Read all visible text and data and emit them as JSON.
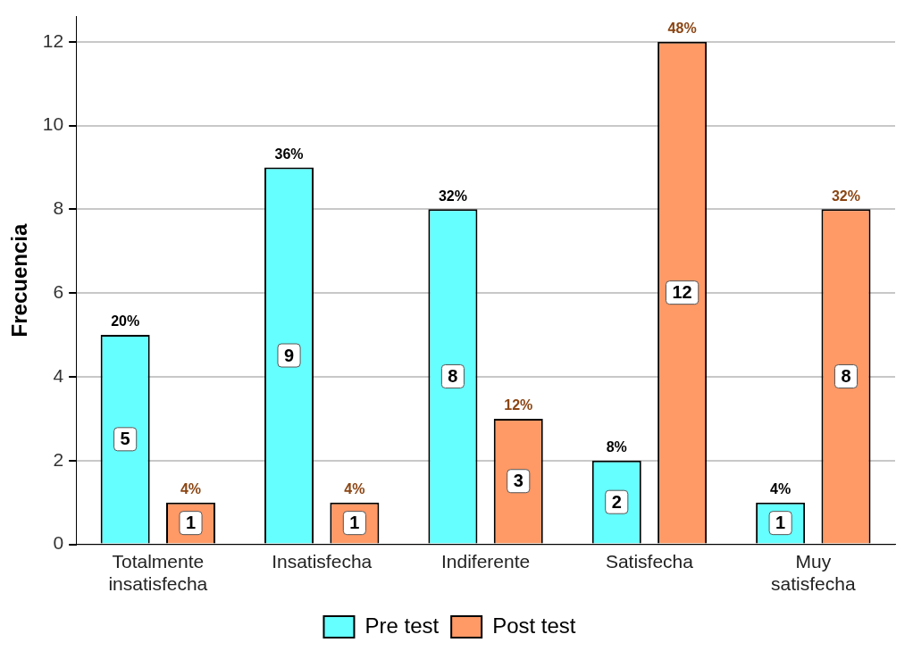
{
  "chart_data": {
    "type": "bar",
    "ylabel": "Frecuencia",
    "categories": [
      "Totalmente insatisfecha",
      "Insatisfecha",
      "Indiferente",
      "Satisfecha",
      "Muy satisfecha"
    ],
    "series": [
      {
        "name": "Pre test",
        "color": "#66ffff",
        "values": [
          5,
          9,
          8,
          2,
          1
        ]
      },
      {
        "name": "Post test",
        "color": "#ff9966",
        "values": [
          1,
          1,
          3,
          12,
          8
        ]
      }
    ],
    "annotations": [
      "20%",
      "36%",
      "32%",
      "8%",
      "4%",
      "4%",
      "4%",
      "12%",
      "48%",
      "32%"
    ],
    "ylim": [
      0,
      12.6
    ],
    "yticks": [
      0,
      2,
      4,
      6,
      8,
      10,
      12
    ],
    "grid": "y",
    "legend": "bottom",
    "data_labels": true
  }
}
